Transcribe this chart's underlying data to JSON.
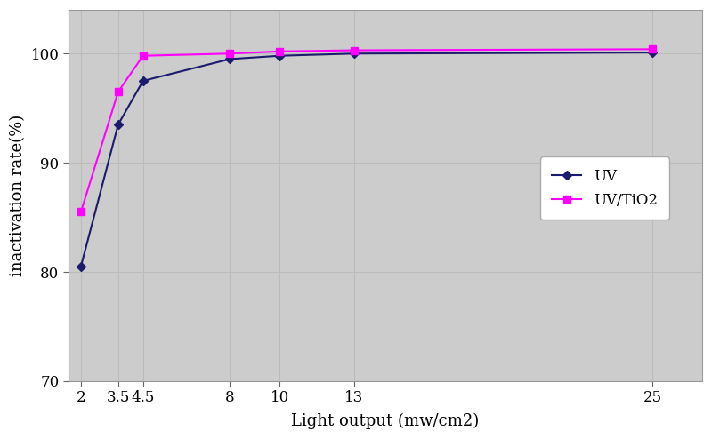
{
  "x": [
    2,
    3.5,
    4.5,
    8,
    10,
    13,
    25
  ],
  "uv_y": [
    80.5,
    93.5,
    97.5,
    99.5,
    99.8,
    100.0,
    100.1
  ],
  "uvtio2_y": [
    85.5,
    96.5,
    99.8,
    100.0,
    100.2,
    100.3,
    100.4
  ],
  "uv_color": "#1a1a6e",
  "uvtio2_color": "#ff00ff",
  "xlabel": "Light output (mw/cm2)",
  "ylabel": "inactivation rate(%)",
  "ylim": [
    70,
    104
  ],
  "yticks": [
    70,
    80,
    90,
    100
  ],
  "xlim": [
    1.5,
    27
  ],
  "xticks": [
    2,
    3.5,
    4.5,
    8,
    10,
    13,
    25
  ],
  "xticklabels": [
    "2",
    "3.5",
    "4.5",
    "8",
    "10",
    "13",
    "25"
  ],
  "legend_uv": "UV",
  "legend_uvtio2": "UV/TiO2",
  "bg_color": "#cccccc",
  "fig_bg": "#ffffff",
  "grid_color": "#bbbbbb",
  "axis_fontsize": 13,
  "tick_fontsize": 12,
  "legend_fontsize": 12
}
